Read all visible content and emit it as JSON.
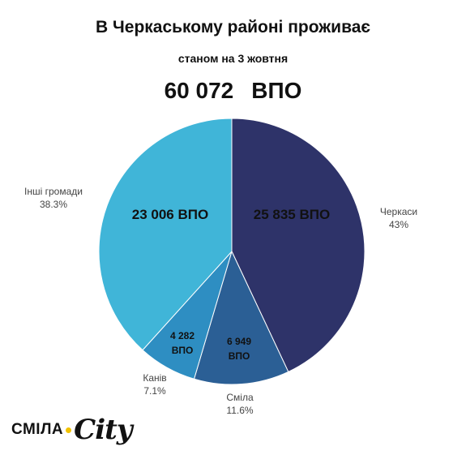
{
  "title": "В Черкаському районі проживає",
  "subtitle": "станом на 3 жовтня",
  "total": {
    "value": "60 072",
    "unit": "ВПО"
  },
  "chart_data": {
    "type": "pie",
    "slices": [
      {
        "name": "Черкаси",
        "percent_label": "43%",
        "value": 25835,
        "value_label": "25 835  ВПО",
        "color": "#2e3369"
      },
      {
        "name": "Сміла",
        "percent_label": "11.6%",
        "value": 6949,
        "value_label": [
          "6 949",
          "ВПО"
        ],
        "color": "#2b5f95"
      },
      {
        "name": "Канів",
        "percent_label": "7.1%",
        "value": 4282,
        "value_label": [
          "4 282",
          "ВПО"
        ],
        "color": "#2e8ec2"
      },
      {
        "name": "Інші громади",
        "percent_label": "38.3%",
        "value": 23006,
        "value_label": "23 006 ВПО",
        "color": "#40b5d8"
      }
    ]
  },
  "logo": {
    "part1": "СМІЛА",
    "part2": "City"
  }
}
